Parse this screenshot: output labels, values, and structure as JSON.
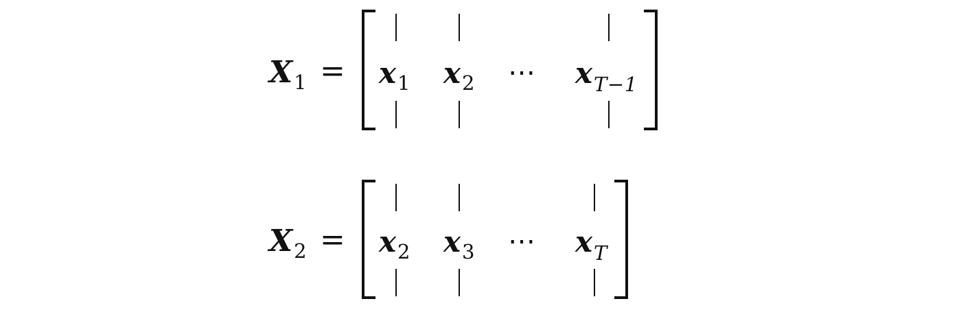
{
  "equations": [
    {
      "lhs": {
        "symbol": "X",
        "subscript": "1"
      },
      "equals": "=",
      "columns": [
        {
          "symbol": "x",
          "subscript": "1"
        },
        {
          "symbol": "x",
          "subscript": "2"
        },
        {
          "symbol": "x",
          "subscript": "T−1"
        }
      ],
      "ellipsis": "⋯"
    },
    {
      "lhs": {
        "symbol": "X",
        "subscript": "2"
      },
      "equals": "=",
      "columns": [
        {
          "symbol": "x",
          "subscript": "2"
        },
        {
          "symbol": "x",
          "subscript": "3"
        },
        {
          "symbol": "x",
          "subscript": "T"
        }
      ],
      "ellipsis": "⋯"
    }
  ]
}
